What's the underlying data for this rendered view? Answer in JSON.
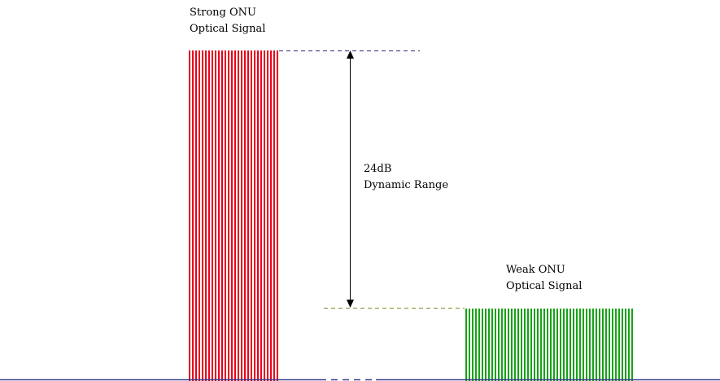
{
  "strong_signal": {
    "line1": "Strong ONU",
    "line2": "Optical Signal",
    "color": "#e8001a"
  },
  "weak_signal": {
    "line1": "Weak ONU",
    "line2": "Optical Signal",
    "color": "#16a216"
  },
  "dynamic_range": {
    "line1": "24dB",
    "line2": "Dynamic Range"
  },
  "baseline_color": "#3a3a8c"
}
